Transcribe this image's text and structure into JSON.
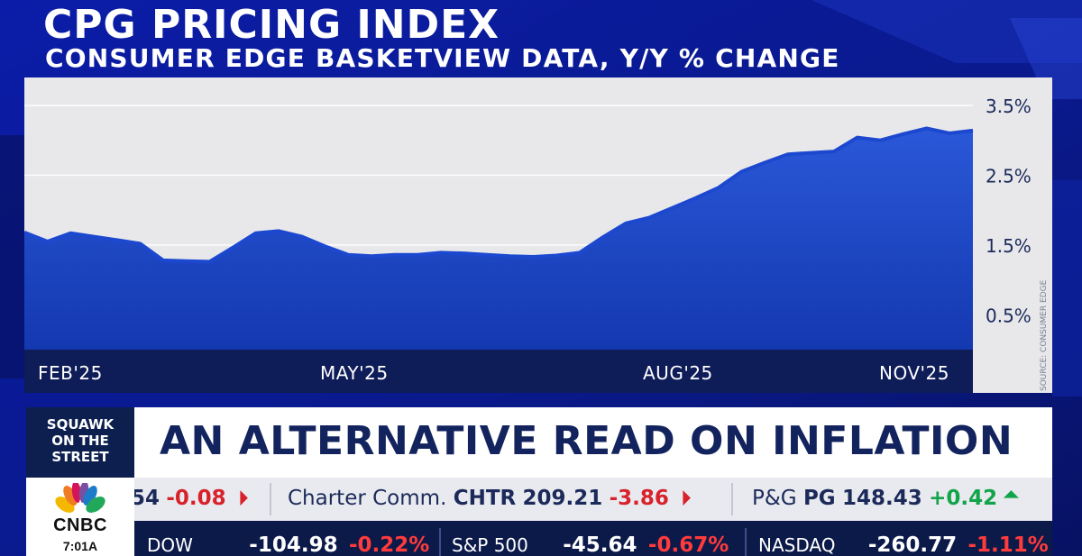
{
  "chart_data": {
    "type": "area",
    "title": "CPG PRICING INDEX",
    "subtitle": "CONSUMER EDGE BASKETVIEW DATA, Y/Y % CHANGE",
    "x_tick_labels": [
      "FEB'25",
      "MAY'25",
      "AUG'25",
      "NOV'25"
    ],
    "y_tick_labels": [
      "3.5%",
      "2.5%",
      "1.5%",
      "0.5%"
    ],
    "y_ticks": [
      3.5,
      2.5,
      1.5,
      0.5
    ],
    "ylim": [
      0.0,
      3.9
    ],
    "grid": true,
    "source": "SOURCE: CONSUMER EDGE",
    "series": [
      {
        "values": [
          1.68,
          1.55,
          1.67,
          1.62,
          1.57,
          1.52,
          1.28,
          1.27,
          1.26,
          1.46,
          1.67,
          1.7,
          1.62,
          1.48,
          1.36,
          1.34,
          1.36,
          1.36,
          1.39,
          1.38,
          1.36,
          1.34,
          1.33,
          1.35,
          1.39,
          1.61,
          1.81,
          1.89,
          2.03,
          2.17,
          2.32,
          2.55,
          2.68,
          2.8,
          2.82,
          2.84,
          3.04,
          3.0,
          3.09,
          3.17,
          3.1,
          3.14
        ]
      }
    ]
  },
  "lower_third": {
    "show_name": "SQUAWK\nON THE\nSTREET",
    "headline": "AN ALTERNATIVE READ ON INFLATION",
    "network": "CNBC",
    "time": "7:01A"
  },
  "ticker": {
    "partial_change": "54",
    "partial_change_value": "-0.08",
    "stock1_name": "Charter Comm.",
    "stock1_symbol": "CHTR",
    "stock1_price": "209.21",
    "stock1_change": "-3.86",
    "stock2_name": "P&G",
    "stock2_symbol": "PG",
    "stock2_price": "148.43",
    "stock2_change": "+0.42",
    "indices": [
      {
        "name": "DOW",
        "value": "-104.98",
        "pct": "-0.22%"
      },
      {
        "name": "S&P 500",
        "value": "-45.64",
        "pct": "-0.67%"
      },
      {
        "name": "NASDAQ",
        "value": "-260.77",
        "pct": "-1.11%"
      }
    ]
  },
  "colors": {
    "background": "#0a1a8c",
    "panel": "#e8e8eb",
    "area_fill": "#1a44c4",
    "area_line": "#1c48cf",
    "axis_band": "#0e1c58",
    "headline_text": "#12235e",
    "negative": "#d8222b",
    "positive": "#12a44a"
  }
}
